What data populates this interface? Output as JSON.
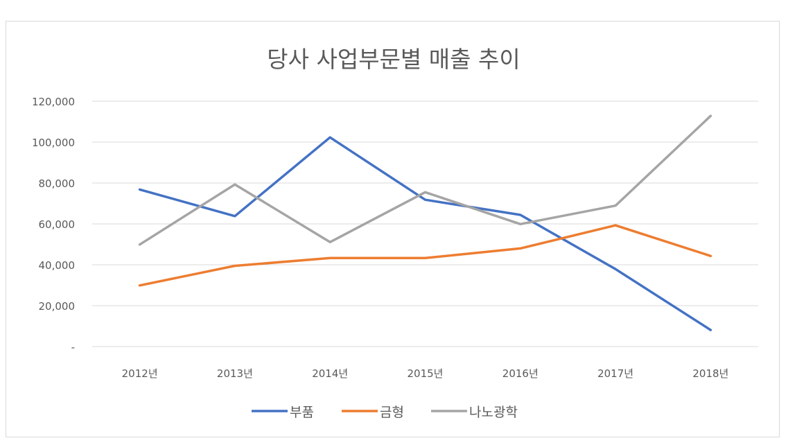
{
  "chart_data": {
    "type": "line",
    "title": "당사 사업부문별 매출 추이",
    "categories": [
      "2012년",
      "2013년",
      "2014년",
      "2015년",
      "2016년",
      "2017년",
      "2018년"
    ],
    "ylim": [
      0,
      120000
    ],
    "yticks": [
      0,
      20000,
      40000,
      60000,
      80000,
      100000,
      120000
    ],
    "ytick_labels": [
      "-",
      "20,000",
      "40,000",
      "60,000",
      "80,000",
      "100,000",
      "120,000"
    ],
    "grid": true,
    "legend_position": "bottom",
    "series": [
      {
        "name": "부품",
        "color": "#4472c4",
        "values": [
          76800,
          63800,
          102300,
          71800,
          64400,
          37900,
          8100
        ]
      },
      {
        "name": "금형",
        "color": "#ed7d31",
        "values": [
          29900,
          39500,
          43300,
          43300,
          48000,
          59300,
          44300
        ]
      },
      {
        "name": "나노광학",
        "color": "#a5a5a5",
        "values": [
          49900,
          79300,
          51100,
          75500,
          59900,
          68900,
          112800
        ]
      }
    ]
  }
}
